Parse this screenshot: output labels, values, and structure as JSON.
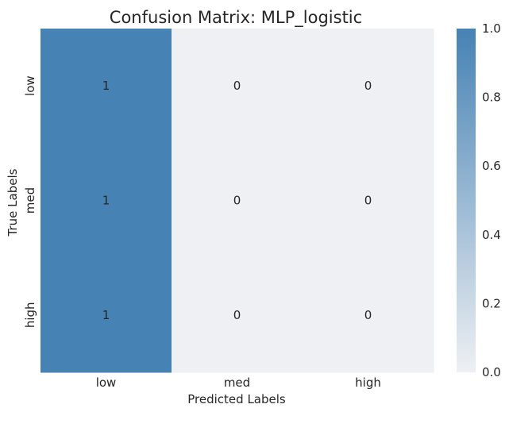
{
  "chart_data": {
    "type": "heatmap",
    "title": "Confusion Matrix: MLP_logistic",
    "xlabel": "Predicted Labels",
    "ylabel": "True Labels",
    "x_categories": [
      "low",
      "med",
      "high"
    ],
    "y_categories": [
      "low",
      "med",
      "high"
    ],
    "values": [
      [
        1,
        0,
        0
      ],
      [
        1,
        0,
        0
      ],
      [
        1,
        0,
        0
      ]
    ],
    "annotations": [
      [
        "1",
        "0",
        "0"
      ],
      [
        "1",
        "0",
        "0"
      ],
      [
        "1",
        "0",
        "0"
      ]
    ],
    "colorbar": {
      "range": [
        0.0,
        1.0
      ],
      "ticks": [
        "0.0",
        "0.2",
        "0.4",
        "0.6",
        "0.8",
        "1.0"
      ],
      "color_low": "#eef0f3",
      "color_high": "#4682b4"
    },
    "grid": false
  }
}
